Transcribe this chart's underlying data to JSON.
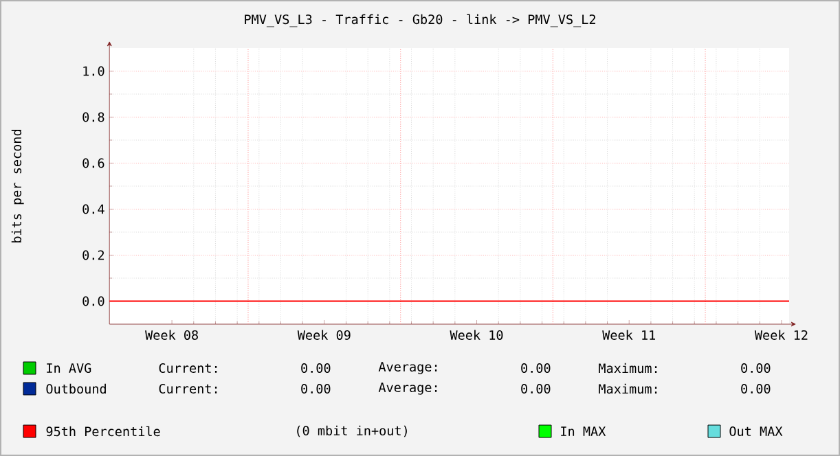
{
  "chart_data": {
    "type": "line",
    "title": "PMV_VS_L3 - Traffic - Gb20 - link -> PMV_VS_L2",
    "ylabel": "bits per second",
    "categories": [
      "Week 08",
      "Week 09",
      "Week 10",
      "Week 11",
      "Week 12"
    ],
    "series": [
      {
        "name": "In AVG",
        "color": "#00cc00",
        "values": [
          null,
          null,
          null,
          null,
          null
        ]
      },
      {
        "name": "Outbound",
        "color": "#002a97",
        "values": [
          null,
          null,
          null,
          null,
          null
        ]
      },
      {
        "name": "In MAX",
        "color": "#00ff00",
        "values": [
          null,
          null,
          null,
          null,
          null
        ]
      },
      {
        "name": "Out MAX",
        "color": "#66dddd",
        "values": [
          null,
          null,
          null,
          null,
          null
        ]
      }
    ],
    "ylim": [
      -0.1,
      1.1
    ],
    "yticks": [
      {
        "value": 0,
        "label": "0.0"
      },
      {
        "value": 0.2,
        "label": "0.2"
      },
      {
        "value": 0.4,
        "label": "0.4"
      },
      {
        "value": 0.6,
        "label": "0.6"
      },
      {
        "value": 0.8,
        "label": "0.8"
      },
      {
        "value": 1,
        "label": "1.0"
      }
    ],
    "grid": true,
    "legend": "bottom",
    "ref_lines": [
      {
        "axis": "y",
        "value": 0,
        "label": "95th Percentile",
        "color": "#ff0000",
        "line_style": "solid"
      }
    ],
    "annotations": [
      "Current:",
      "0.00",
      "Average:",
      "0.00",
      "Maximum:",
      "0.00",
      "Current:",
      "0.00",
      "Average:",
      "0.00",
      "Maximum:",
      "0.00",
      "(0 mbit in+out)"
    ]
  }
}
